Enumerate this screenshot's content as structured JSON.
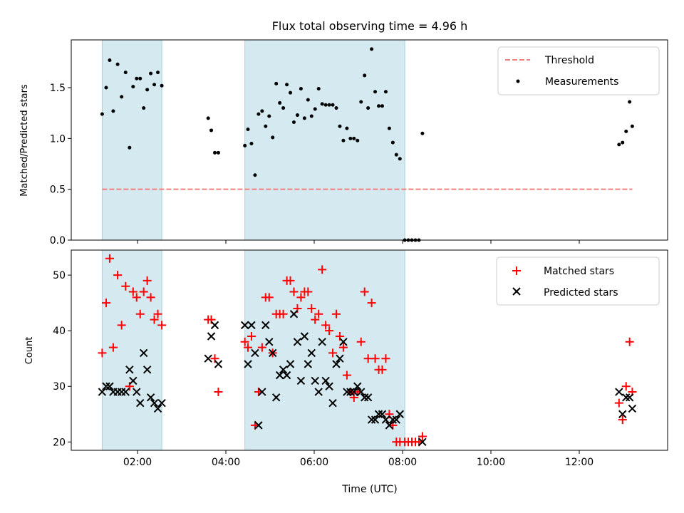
{
  "chart_data": [
    {
      "type": "scatter",
      "title": "Flux total observing time = 4.96 h",
      "xlabel": "",
      "ylabel": "Matched/Predicted stars",
      "x_unit": "hours UTC",
      "xlim": [
        0.5,
        14.0
      ],
      "ylim": [
        0,
        1.97
      ],
      "yticks": [
        "0.0",
        "0.5",
        "1.0",
        "1.5"
      ],
      "shaded_intervals": [
        [
          1.2,
          2.55
        ],
        [
          4.43,
          8.05
        ]
      ],
      "shade_color": "#d4eaf0",
      "legend_position": "top-right",
      "threshold": {
        "name": "Threshold",
        "value": 0.5,
        "x_range": [
          1.2,
          13.2
        ],
        "color": "#f47e7e"
      },
      "series": [
        {
          "name": "Measurements",
          "color": "#000000",
          "marker": "dot",
          "points": [
            [
              1.2,
              1.24
            ],
            [
              1.29,
              1.5
            ],
            [
              1.37,
              1.77
            ],
            [
              1.45,
              1.27
            ],
            [
              1.55,
              1.73
            ],
            [
              1.64,
              1.41
            ],
            [
              1.73,
              1.65
            ],
            [
              1.82,
              0.91
            ],
            [
              1.9,
              1.51
            ],
            [
              1.98,
              1.59
            ],
            [
              2.06,
              1.59
            ],
            [
              2.14,
              1.3
            ],
            [
              2.22,
              1.48
            ],
            [
              2.3,
              1.64
            ],
            [
              2.38,
              1.53
            ],
            [
              2.46,
              1.65
            ],
            [
              2.55,
              1.52
            ],
            [
              3.6,
              1.2
            ],
            [
              3.67,
              1.08
            ],
            [
              3.75,
              0.86
            ],
            [
              3.83,
              0.86
            ],
            [
              4.43,
              0.93
            ],
            [
              4.5,
              1.09
            ],
            [
              4.58,
              0.95
            ],
            [
              4.66,
              0.64
            ],
            [
              4.74,
              1.24
            ],
            [
              4.82,
              1.27
            ],
            [
              4.9,
              1.12
            ],
            [
              4.98,
              1.22
            ],
            [
              5.06,
              1.01
            ],
            [
              5.14,
              1.54
            ],
            [
              5.22,
              1.35
            ],
            [
              5.3,
              1.3
            ],
            [
              5.38,
              1.53
            ],
            [
              5.46,
              1.45
            ],
            [
              5.54,
              1.16
            ],
            [
              5.62,
              1.23
            ],
            [
              5.7,
              1.49
            ],
            [
              5.78,
              1.2
            ],
            [
              5.86,
              1.38
            ],
            [
              5.94,
              1.22
            ],
            [
              6.02,
              1.29
            ],
            [
              6.1,
              1.49
            ],
            [
              6.18,
              1.34
            ],
            [
              6.26,
              1.33
            ],
            [
              6.34,
              1.33
            ],
            [
              6.42,
              1.33
            ],
            [
              6.5,
              1.3
            ],
            [
              6.58,
              1.12
            ],
            [
              6.66,
              0.98
            ],
            [
              6.74,
              1.1
            ],
            [
              6.82,
              1.0
            ],
            [
              6.9,
              1.0
            ],
            [
              6.98,
              0.98
            ],
            [
              7.06,
              1.36
            ],
            [
              7.14,
              1.62
            ],
            [
              7.22,
              1.3
            ],
            [
              7.3,
              1.88
            ],
            [
              7.38,
              1.46
            ],
            [
              7.46,
              1.32
            ],
            [
              7.54,
              1.32
            ],
            [
              7.62,
              1.46
            ],
            [
              7.7,
              1.1
            ],
            [
              7.78,
              0.96
            ],
            [
              7.86,
              0.84
            ],
            [
              7.94,
              0.8
            ],
            [
              8.05,
              0.0
            ],
            [
              8.13,
              0.0
            ],
            [
              8.21,
              0.0
            ],
            [
              8.29,
              0.0
            ],
            [
              8.37,
              0.0
            ],
            [
              8.45,
              1.05
            ],
            [
              12.9,
              0.94
            ],
            [
              12.98,
              0.96
            ],
            [
              13.06,
              1.07
            ],
            [
              13.14,
              1.36
            ],
            [
              13.2,
              1.12
            ]
          ]
        }
      ]
    },
    {
      "type": "scatter",
      "title": "",
      "xlabel": "Time (UTC)",
      "ylabel": "Count",
      "x_unit": "hours UTC",
      "xlim": [
        0.5,
        14.0
      ],
      "ylim": [
        18.5,
        54.5
      ],
      "yticks": [
        "20",
        "30",
        "40",
        "50"
      ],
      "xticks": [
        "02:00",
        "04:00",
        "06:00",
        "08:00",
        "10:00",
        "12:00"
      ],
      "shaded_intervals": [
        [
          1.2,
          2.55
        ],
        [
          4.43,
          8.05
        ]
      ],
      "legend_position": "top-right",
      "series": [
        {
          "name": "Matched stars",
          "color": "#ff0000",
          "marker": "plus",
          "points": [
            [
              1.2,
              36
            ],
            [
              1.29,
              45
            ],
            [
              1.37,
              53
            ],
            [
              1.45,
              37
            ],
            [
              1.55,
              50
            ],
            [
              1.64,
              41
            ],
            [
              1.73,
              48
            ],
            [
              1.82,
              30
            ],
            [
              1.9,
              47
            ],
            [
              1.98,
              46
            ],
            [
              2.06,
              43
            ],
            [
              2.14,
              47
            ],
            [
              2.22,
              49
            ],
            [
              2.3,
              46
            ],
            [
              2.38,
              42
            ],
            [
              2.46,
              43
            ],
            [
              2.55,
              41
            ],
            [
              3.6,
              42
            ],
            [
              3.67,
              42
            ],
            [
              3.75,
              35
            ],
            [
              3.83,
              29
            ],
            [
              4.43,
              38
            ],
            [
              4.5,
              37
            ],
            [
              4.58,
              39
            ],
            [
              4.66,
              23
            ],
            [
              4.74,
              29
            ],
            [
              4.82,
              37
            ],
            [
              4.9,
              46
            ],
            [
              4.98,
              46
            ],
            [
              5.06,
              36
            ],
            [
              5.14,
              43
            ],
            [
              5.22,
              43
            ],
            [
              5.3,
              43
            ],
            [
              5.38,
              49
            ],
            [
              5.46,
              49
            ],
            [
              5.54,
              47
            ],
            [
              5.62,
              44
            ],
            [
              5.7,
              46
            ],
            [
              5.78,
              47
            ],
            [
              5.86,
              47
            ],
            [
              5.94,
              44
            ],
            [
              6.02,
              42
            ],
            [
              6.1,
              43
            ],
            [
              6.18,
              51
            ],
            [
              6.26,
              41
            ],
            [
              6.34,
              40
            ],
            [
              6.42,
              36
            ],
            [
              6.5,
              43
            ],
            [
              6.58,
              39
            ],
            [
              6.66,
              37
            ],
            [
              6.74,
              32
            ],
            [
              6.82,
              29
            ],
            [
              6.9,
              28
            ],
            [
              6.98,
              29
            ],
            [
              7.06,
              38
            ],
            [
              7.14,
              47
            ],
            [
              7.22,
              35
            ],
            [
              7.3,
              45
            ],
            [
              7.38,
              35
            ],
            [
              7.46,
              33
            ],
            [
              7.54,
              33
            ],
            [
              7.62,
              35
            ],
            [
              7.7,
              25
            ],
            [
              7.78,
              23
            ],
            [
              7.86,
              20
            ],
            [
              7.94,
              20
            ],
            [
              8.05,
              20
            ],
            [
              8.13,
              20
            ],
            [
              8.21,
              20
            ],
            [
              8.29,
              20
            ],
            [
              8.37,
              20
            ],
            [
              8.45,
              21
            ],
            [
              12.9,
              27
            ],
            [
              12.98,
              24
            ],
            [
              13.06,
              30
            ],
            [
              13.14,
              38
            ],
            [
              13.2,
              29
            ]
          ]
        },
        {
          "name": "Predicted stars",
          "color": "#000000",
          "marker": "x",
          "points": [
            [
              1.2,
              29
            ],
            [
              1.29,
              30
            ],
            [
              1.37,
              30
            ],
            [
              1.45,
              29
            ],
            [
              1.55,
              29
            ],
            [
              1.64,
              29
            ],
            [
              1.73,
              29
            ],
            [
              1.82,
              33
            ],
            [
              1.9,
              31
            ],
            [
              1.98,
              29
            ],
            [
              2.06,
              27
            ],
            [
              2.14,
              36
            ],
            [
              2.22,
              33
            ],
            [
              2.3,
              28
            ],
            [
              2.38,
              27
            ],
            [
              2.46,
              26
            ],
            [
              2.55,
              27
            ],
            [
              3.6,
              35
            ],
            [
              3.67,
              39
            ],
            [
              3.75,
              41
            ],
            [
              3.83,
              34
            ],
            [
              4.43,
              41
            ],
            [
              4.5,
              34
            ],
            [
              4.58,
              41
            ],
            [
              4.66,
              36
            ],
            [
              4.74,
              23
            ],
            [
              4.82,
              29
            ],
            [
              4.9,
              41
            ],
            [
              4.98,
              38
            ],
            [
              5.06,
              36
            ],
            [
              5.14,
              28
            ],
            [
              5.22,
              32
            ],
            [
              5.3,
              33
            ],
            [
              5.38,
              32
            ],
            [
              5.46,
              34
            ],
            [
              5.54,
              43
            ],
            [
              5.62,
              38
            ],
            [
              5.7,
              31
            ],
            [
              5.78,
              39
            ],
            [
              5.86,
              34
            ],
            [
              5.94,
              36
            ],
            [
              6.02,
              31
            ],
            [
              6.1,
              29
            ],
            [
              6.18,
              38
            ],
            [
              6.26,
              31
            ],
            [
              6.34,
              30
            ],
            [
              6.42,
              27
            ],
            [
              6.5,
              34
            ],
            [
              6.58,
              35
            ],
            [
              6.66,
              38
            ],
            [
              6.74,
              29
            ],
            [
              6.82,
              29
            ],
            [
              6.9,
              29
            ],
            [
              6.98,
              30
            ],
            [
              7.06,
              29
            ],
            [
              7.14,
              28
            ],
            [
              7.22,
              28
            ],
            [
              7.3,
              24
            ],
            [
              7.38,
              24
            ],
            [
              7.46,
              25
            ],
            [
              7.54,
              25
            ],
            [
              7.62,
              24
            ],
            [
              7.7,
              23
            ],
            [
              7.78,
              24
            ],
            [
              7.86,
              24
            ],
            [
              7.94,
              25
            ],
            [
              8.45,
              20
            ],
            [
              12.9,
              29
            ],
            [
              12.98,
              25
            ],
            [
              13.06,
              28
            ],
            [
              13.14,
              28
            ],
            [
              13.2,
              26
            ]
          ]
        }
      ]
    }
  ]
}
